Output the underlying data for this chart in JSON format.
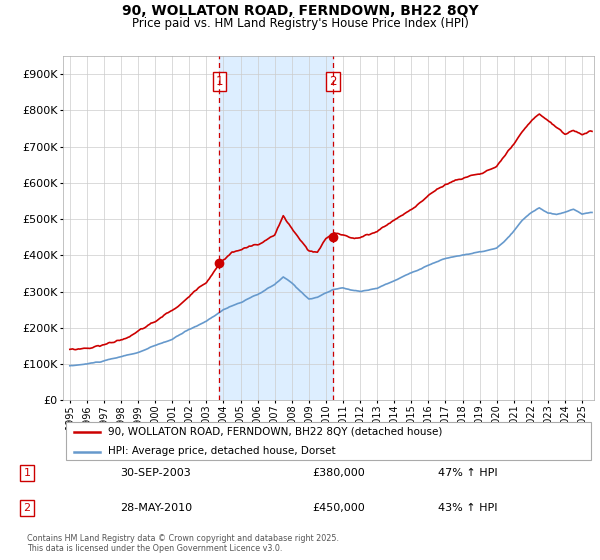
{
  "title": "90, WOLLATON ROAD, FERNDOWN, BH22 8QY",
  "subtitle": "Price paid vs. HM Land Registry's House Price Index (HPI)",
  "legend_line1": "90, WOLLATON ROAD, FERNDOWN, BH22 8QY (detached house)",
  "legend_line2": "HPI: Average price, detached house, Dorset",
  "sale1_date": "30-SEP-2003",
  "sale1_price": "£380,000",
  "sale1_hpi": "47% ↑ HPI",
  "sale2_date": "28-MAY-2010",
  "sale2_price": "£450,000",
  "sale2_hpi": "43% ↑ HPI",
  "footer": "Contains HM Land Registry data © Crown copyright and database right 2025.\nThis data is licensed under the Open Government Licence v3.0.",
  "red_color": "#cc0000",
  "blue_color": "#6699cc",
  "shade_color": "#ddeeff",
  "grid_color": "#cccccc",
  "ylim": [
    0,
    950000
  ],
  "yticks": [
    0,
    100000,
    200000,
    300000,
    400000,
    500000,
    600000,
    700000,
    800000,
    900000
  ],
  "ytick_labels": [
    "£0",
    "£100K",
    "£200K",
    "£300K",
    "£400K",
    "£500K",
    "£600K",
    "£700K",
    "£800K",
    "£900K"
  ],
  "vline1_x": 2003.75,
  "vline2_x": 2010.42,
  "marker1_x": 2003.75,
  "marker1_y": 380000,
  "marker2_x": 2010.42,
  "marker2_y": 450000,
  "xlim_left": 1994.6,
  "xlim_right": 2025.7
}
